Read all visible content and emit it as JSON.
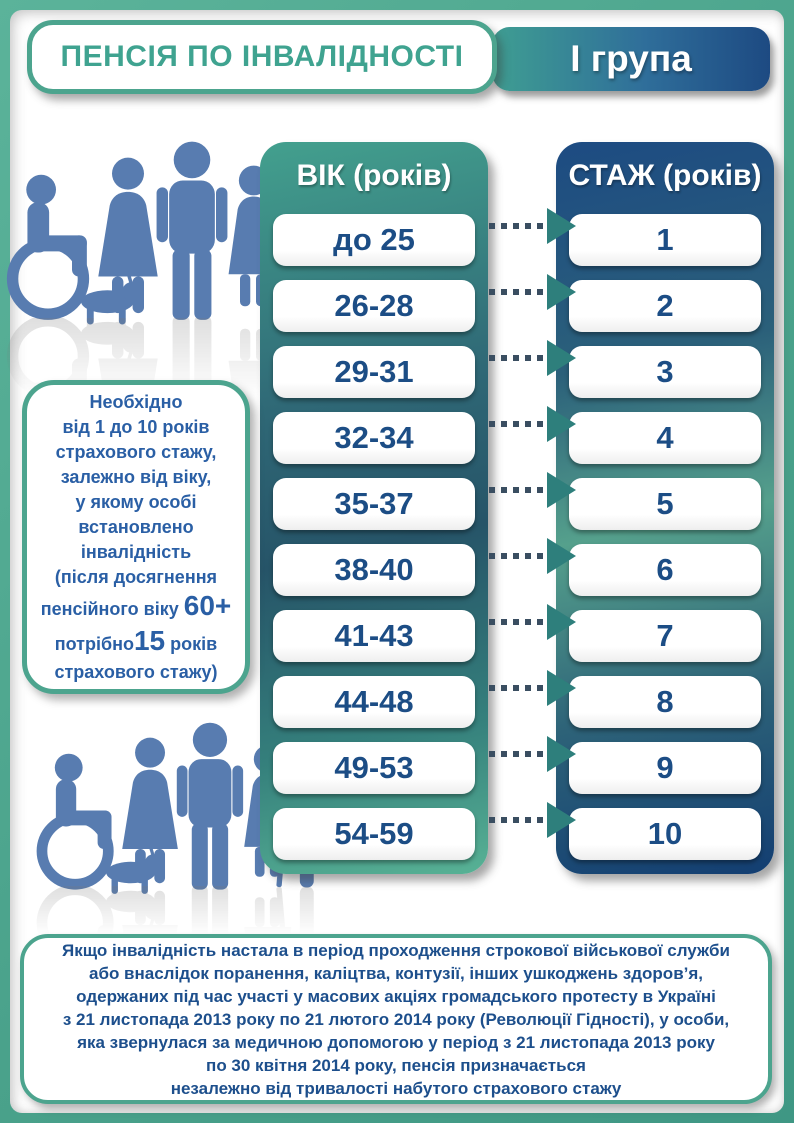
{
  "page": {
    "title_left": "ПЕНСІЯ ПО ІНВАЛІДНОСТІ",
    "title_right": "І група"
  },
  "table": {
    "age_header": "ВІК (років)",
    "experience_header": "СТАЖ (років)",
    "rows": [
      {
        "age": "до 25",
        "years": "1"
      },
      {
        "age": "26-28",
        "years": "2"
      },
      {
        "age": "29-31",
        "years": "3"
      },
      {
        "age": "32-34",
        "years": "4"
      },
      {
        "age": "35-37",
        "years": "5"
      },
      {
        "age": "38-40",
        "years": "6"
      },
      {
        "age": "41-43",
        "years": "7"
      },
      {
        "age": "44-48",
        "years": "8"
      },
      {
        "age": "49-53",
        "years": "9"
      },
      {
        "age": "54-59",
        "years": "10"
      }
    ]
  },
  "note": {
    "lines": [
      "Необхідно",
      "від 1 до 10 років",
      "страхового стажу,",
      "залежно від віку,",
      "у якому особі",
      "встановлено",
      "інвалідність",
      "(після досягнення"
    ],
    "pension_age_prefix": "пенсійного віку ",
    "pension_age_big": "60+",
    "required_prefix": "потрібно",
    "required_big": "15",
    "required_suffix": " років",
    "last_line": "страхового стажу)"
  },
  "footer": {
    "lines": [
      "Якщо інвалідність настала в період проходження строкової військової служби",
      "або внаслідок поранення, каліцтва, контузії, інших ушкоджень здоров’я,",
      "одержаних під час участі у масових акціях громадського протесту в Україні",
      "з 21 листопада 2013 року по 21 лютого 2014 року (Революції Гідності), у особи,",
      "яка звернулася  за медичною допомогою у період з 21 листопада 2013 року",
      "по 30 квітня 2014 року, пенсія призначається",
      "незалежно від тривалості набутого страхового стажу"
    ]
  },
  "colors": {
    "frame_green": "#4AA28B",
    "border_green": "#4CA48E",
    "header_teal_text": "#3FA390",
    "navy": "#1C4A82",
    "cell_text_navy": "#1C4D85",
    "note_text_blue": "#2A5FA5",
    "footer_text_blue": "#1D4F8C",
    "people_blue": "#587CB0",
    "arrow_head_teal": "#2E7F7C",
    "arrow_dot_slate": "#3A4E61"
  }
}
